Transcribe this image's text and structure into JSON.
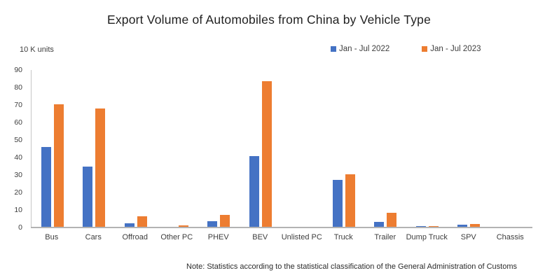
{
  "title": "Export Volume of Automobiles from China by Vehicle Type",
  "units_label": "10 K units",
  "footnote": "Note: Statistics according to the statistical classification of the General Administration of Customs",
  "colors": {
    "series_2022": "#4472C4",
    "series_2023": "#ED7D31",
    "axis_line": "#C6C6C6",
    "baseline": "#B3B3B3",
    "text": "#3D3D3D"
  },
  "chart_data": {
    "type": "bar",
    "title": "Export Volume of Automobiles from China by Vehicle Type",
    "ylabel": "10 K units",
    "xlabel": "",
    "ylim": [
      0,
      90
    ],
    "ytick_step": 10,
    "grid": false,
    "legend_position": "top-right",
    "categories": [
      "Bus",
      "Cars",
      "Offroad",
      "Other PC",
      "PHEV",
      "BEV",
      "Unlisted PC",
      "Truck",
      "Trailer",
      "Dump Truck",
      "SPV",
      "Chassis"
    ],
    "series": [
      {
        "name": "Jan - Jul 2022",
        "color": "#4472C4",
        "values": [
          46,
          35,
          2.3,
          0.6,
          3.6,
          41,
          0.5,
          27.2,
          3.4,
          0.9,
          1.5,
          0.5
        ]
      },
      {
        "name": "Jan - Jul 2023",
        "color": "#ED7D31",
        "values": [
          70.5,
          68,
          6.4,
          1.1,
          7.2,
          83.7,
          0.5,
          30.5,
          8.4,
          0.7,
          2.1,
          0.4
        ]
      }
    ]
  }
}
